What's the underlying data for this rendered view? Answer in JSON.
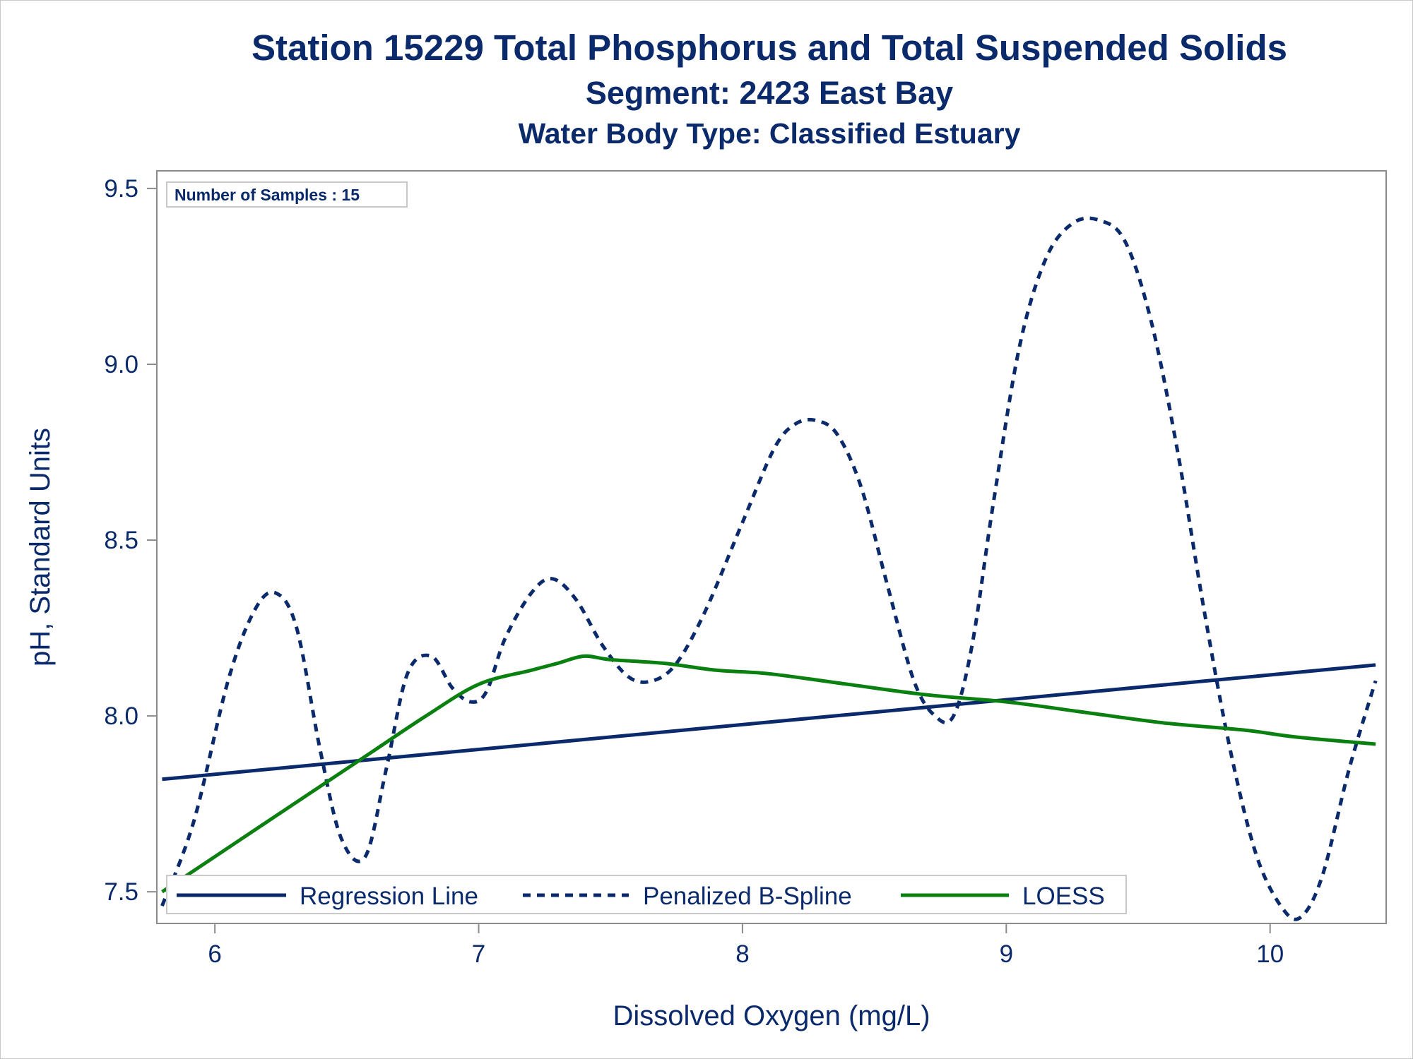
{
  "titles": {
    "line1": "Station 15229  Total Phosphorus and Total Suspended Solids",
    "line2": "Segment: 2423  East Bay",
    "line3": "Water Body Type: Classified Estuary"
  },
  "inset": {
    "label": "Number of Samples : 15"
  },
  "colors": {
    "text": "#0a2a6b",
    "regression": "#0a2a6b",
    "spline": "#0a2a6b",
    "loess": "#0a8010",
    "axis": "#8c8c8c"
  },
  "chart_data": {
    "type": "line",
    "xlabel": "Dissolved Oxygen (mg/L)",
    "ylabel": "pH, Standard Units",
    "xlim": [
      5.78,
      10.44
    ],
    "ylim": [
      7.41,
      9.55
    ],
    "xticks": [
      6,
      7,
      8,
      9,
      10
    ],
    "yticks": [
      7.5,
      8.0,
      8.5,
      9.0,
      9.5
    ],
    "xtick_labels": [
      "6",
      "7",
      "8",
      "9",
      "10"
    ],
    "ytick_labels": [
      "7.5",
      "8.0",
      "8.5",
      "9.0",
      "9.5"
    ],
    "grid": false,
    "legend_position": "bottom-inside",
    "series": [
      {
        "name": "Regression Line",
        "style": "solid",
        "x": [
          5.8,
          10.4
        ],
        "y": [
          7.82,
          8.145
        ]
      },
      {
        "name": "Penalized B-Spline",
        "style": "dashed",
        "x": [
          5.8,
          5.92,
          6.05,
          6.15,
          6.23,
          6.31,
          6.4,
          6.48,
          6.57,
          6.65,
          6.73,
          6.82,
          6.9,
          6.97,
          7.03,
          7.1,
          7.2,
          7.28,
          7.37,
          7.47,
          7.57,
          7.66,
          7.75,
          7.86,
          8.0,
          8.12,
          8.2,
          8.28,
          8.36,
          8.45,
          8.55,
          8.65,
          8.73,
          8.8,
          8.87,
          8.95,
          9.05,
          9.15,
          9.25,
          9.35,
          9.45,
          9.55,
          9.65,
          9.75,
          9.85,
          9.95,
          10.05,
          10.12,
          10.2,
          10.3,
          10.4
        ],
        "y": [
          7.46,
          7.7,
          8.1,
          8.3,
          8.35,
          8.25,
          7.9,
          7.65,
          7.6,
          7.85,
          8.12,
          8.17,
          8.08,
          8.04,
          8.07,
          8.22,
          8.35,
          8.39,
          8.33,
          8.2,
          8.11,
          8.1,
          8.15,
          8.3,
          8.55,
          8.76,
          8.83,
          8.84,
          8.8,
          8.65,
          8.37,
          8.1,
          8.0,
          8.0,
          8.2,
          8.6,
          9.05,
          9.3,
          9.4,
          9.41,
          9.35,
          9.12,
          8.75,
          8.3,
          7.9,
          7.6,
          7.45,
          7.43,
          7.55,
          7.85,
          8.1
        ]
      },
      {
        "name": "LOESS",
        "style": "solid",
        "x": [
          5.8,
          6.0,
          6.2,
          6.4,
          6.6,
          6.8,
          7.0,
          7.2,
          7.3,
          7.4,
          7.5,
          7.7,
          7.9,
          8.1,
          8.4,
          8.7,
          9.0,
          9.3,
          9.6,
          9.9,
          10.1,
          10.4
        ],
        "y": [
          7.5,
          7.6,
          7.7,
          7.8,
          7.9,
          8.0,
          8.09,
          8.13,
          8.15,
          8.17,
          8.16,
          8.15,
          8.13,
          8.12,
          8.09,
          8.06,
          8.04,
          8.01,
          7.98,
          7.96,
          7.94,
          7.92
        ]
      }
    ]
  }
}
